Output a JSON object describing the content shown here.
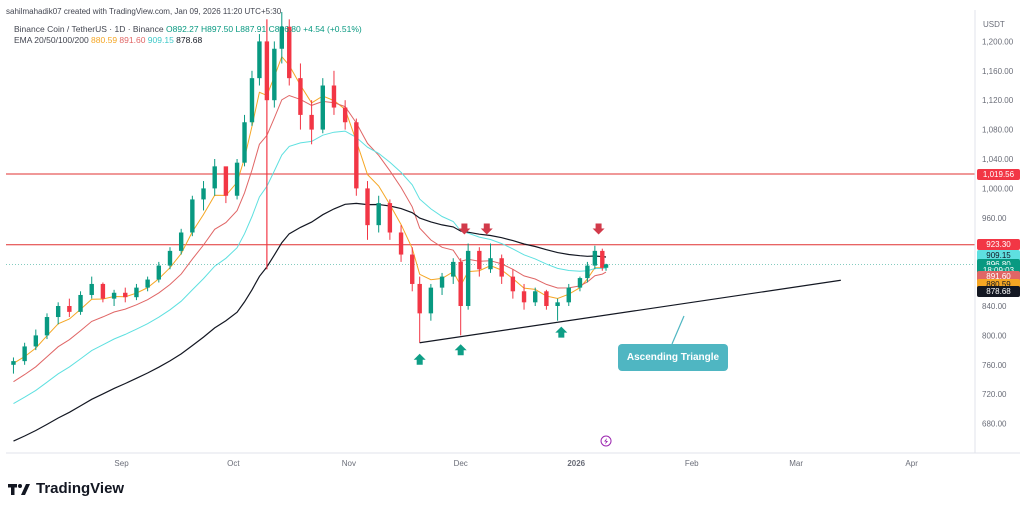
{
  "header": {
    "credit": "sahilmahadik07 created with TradingView.com, Jan 09, 2026 11:20 UTC+5:30",
    "symbol_line": "Binance Coin / TetherUS · 1D · Binance",
    "ohlc": {
      "o": "O892.27",
      "h": "H897.50",
      "l": "L887.91",
      "c": "C896.80",
      "chg": "+4.54 (+0.51%)"
    },
    "ema_line": "EMA 20/50/100/200",
    "ema_values": [
      "880.59",
      "891.60",
      "909.15",
      "878.68"
    ]
  },
  "colors": {
    "up": "#089981",
    "down": "#f23645",
    "ema20": "#f5a623",
    "ema50": "#e06666",
    "ema100": "#5ee0e0",
    "ema200": "#131722",
    "hline": "#e03030",
    "trend": "#131722"
  },
  "chart_data": {
    "type": "candlestick",
    "title": "",
    "xlabel": "",
    "ylabel": "",
    "currency": "USDT",
    "ylim": [
      640,
      1240
    ],
    "y_ticks": [
      1200,
      1160,
      1120,
      1080,
      1040,
      1000,
      960,
      920,
      880,
      840,
      800,
      760,
      720,
      680
    ],
    "y_tick_labels": [
      "1,200.00",
      "1,160.00",
      "1,120.00",
      "1,080.00",
      "1,040.00",
      "1,000.00",
      "960.00",
      "920.00",
      "880.00",
      "840.00",
      "800.00",
      "760.00",
      "720.00",
      "680.00"
    ],
    "x_tick_labels": [
      "Sep",
      "Oct",
      "Nov",
      "Dec",
      "2026",
      "Feb",
      "Mar",
      "Apr"
    ],
    "horizontal_levels": [
      1019.56,
      923.3
    ],
    "price_badges": [
      {
        "label": "1,019.56",
        "value": 1019.56,
        "color": "#f23645"
      },
      {
        "label": "923.30",
        "value": 923.3,
        "color": "#f23645"
      },
      {
        "label": "909.15",
        "value": 909.15,
        "color": "#5ee0e0"
      },
      {
        "label": "896.80",
        "value": 896.8,
        "color": "#089981"
      },
      {
        "label": "18:09:03",
        "value": 888.0,
        "color": "#089981"
      },
      {
        "label": "891.60",
        "value": 879.5,
        "color": "#e06666"
      },
      {
        "label": "880.59",
        "value": 869.5,
        "color": "#f5a623"
      },
      {
        "label": "878.68",
        "value": 859.5,
        "color": "#131722"
      }
    ],
    "trendline": {
      "from": [
        "2025-11-20",
        790
      ],
      "to": [
        "2026-03-13",
        875
      ]
    },
    "annotation": "Ascending Triangle",
    "resistance_markers": [
      "2025-12-02",
      "2025-12-08",
      "2026-01-07"
    ],
    "support_markers": [
      "2025-11-20",
      "2025-12-01",
      "2025-12-28"
    ],
    "candles": [
      [
        "2025-08-03",
        760,
        770,
        748,
        765
      ],
      [
        "2025-08-06",
        765,
        790,
        760,
        785
      ],
      [
        "2025-08-09",
        785,
        808,
        780,
        800
      ],
      [
        "2025-08-12",
        800,
        830,
        795,
        825
      ],
      [
        "2025-08-15",
        825,
        845,
        815,
        840
      ],
      [
        "2025-08-18",
        840,
        850,
        825,
        832
      ],
      [
        "2025-08-21",
        832,
        860,
        828,
        855
      ],
      [
        "2025-08-24",
        855,
        880,
        850,
        870
      ],
      [
        "2025-08-27",
        870,
        872,
        845,
        850
      ],
      [
        "2025-08-30",
        850,
        862,
        840,
        858
      ],
      [
        "2025-09-02",
        858,
        865,
        845,
        852
      ],
      [
        "2025-09-05",
        852,
        870,
        848,
        865
      ],
      [
        "2025-09-08",
        865,
        880,
        860,
        876
      ],
      [
        "2025-09-11",
        876,
        900,
        872,
        895
      ],
      [
        "2025-09-14",
        895,
        920,
        890,
        915
      ],
      [
        "2025-09-17",
        915,
        945,
        910,
        940
      ],
      [
        "2025-09-20",
        940,
        990,
        935,
        985
      ],
      [
        "2025-09-23",
        985,
        1010,
        970,
        1000
      ],
      [
        "2025-09-26",
        1000,
        1040,
        990,
        1030
      ],
      [
        "2025-09-29",
        1030,
        1025,
        980,
        990
      ],
      [
        "2025-10-02",
        990,
        1040,
        985,
        1035
      ],
      [
        "2025-10-04",
        1035,
        1100,
        1030,
        1090
      ],
      [
        "2025-10-06",
        1090,
        1160,
        1085,
        1150
      ],
      [
        "2025-10-08",
        1150,
        1210,
        1140,
        1200
      ],
      [
        "2025-10-10",
        1200,
        1230,
        890,
        1120
      ],
      [
        "2025-10-12",
        1120,
        1200,
        1110,
        1190
      ],
      [
        "2025-10-14",
        1190,
        1240,
        1170,
        1220
      ],
      [
        "2025-10-16",
        1220,
        1230,
        1140,
        1150
      ],
      [
        "2025-10-19",
        1150,
        1170,
        1080,
        1100
      ],
      [
        "2025-10-22",
        1100,
        1120,
        1060,
        1080
      ],
      [
        "2025-10-25",
        1080,
        1150,
        1075,
        1140
      ],
      [
        "2025-10-28",
        1140,
        1160,
        1100,
        1110
      ],
      [
        "2025-10-31",
        1110,
        1120,
        1080,
        1090
      ],
      [
        "2025-11-03",
        1090,
        1095,
        990,
        1000
      ],
      [
        "2025-11-06",
        1000,
        1010,
        930,
        950
      ],
      [
        "2025-11-09",
        950,
        990,
        940,
        980
      ],
      [
        "2025-11-12",
        980,
        985,
        930,
        940
      ],
      [
        "2025-11-15",
        940,
        950,
        900,
        910
      ],
      [
        "2025-11-18",
        910,
        920,
        860,
        870
      ],
      [
        "2025-11-20",
        870,
        880,
        790,
        830
      ],
      [
        "2025-11-23",
        830,
        870,
        820,
        865
      ],
      [
        "2025-11-26",
        865,
        885,
        855,
        880
      ],
      [
        "2025-11-29",
        880,
        905,
        870,
        900
      ],
      [
        "2025-12-01",
        900,
        905,
        800,
        840
      ],
      [
        "2025-12-03",
        840,
        925,
        835,
        915
      ],
      [
        "2025-12-06",
        915,
        920,
        880,
        890
      ],
      [
        "2025-12-09",
        890,
        925,
        885,
        905
      ],
      [
        "2025-12-12",
        905,
        910,
        870,
        880
      ],
      [
        "2025-12-15",
        880,
        890,
        850,
        860
      ],
      [
        "2025-12-18",
        860,
        870,
        835,
        845
      ],
      [
        "2025-12-21",
        845,
        865,
        840,
        860
      ],
      [
        "2025-12-24",
        860,
        862,
        835,
        840
      ],
      [
        "2025-12-27",
        840,
        850,
        820,
        845
      ],
      [
        "2025-12-30",
        845,
        870,
        840,
        865
      ],
      [
        "2026-01-02",
        865,
        880,
        860,
        878
      ],
      [
        "2026-01-04",
        878,
        900,
        872,
        895
      ],
      [
        "2026-01-06",
        895,
        922,
        890,
        915
      ],
      [
        "2026-01-08",
        915,
        918,
        888,
        892
      ],
      [
        "2026-01-09",
        892,
        897.5,
        887.91,
        896.8
      ]
    ]
  }
}
